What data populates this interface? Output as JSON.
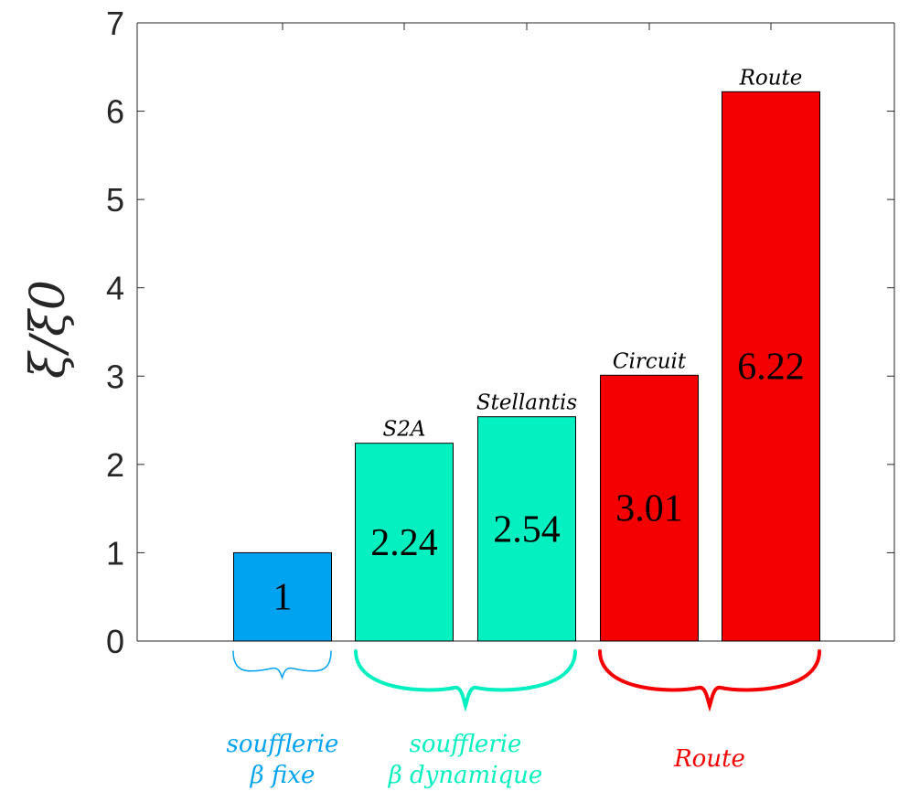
{
  "chart_data": {
    "type": "bar",
    "ylabel": "ξ/ξ0",
    "ylim": [
      0,
      7
    ],
    "yticks": [
      0,
      1,
      2,
      3,
      4,
      5,
      6,
      7
    ],
    "grid": false,
    "bars": [
      {
        "top_label": "",
        "value": 1,
        "value_label": "1",
        "color": "#00a3f0",
        "group": 0
      },
      {
        "top_label": "S2A",
        "value": 2.24,
        "value_label": "2.24",
        "color": "#05f0c0",
        "group": 1
      },
      {
        "top_label": "Stellantis",
        "value": 2.54,
        "value_label": "2.54",
        "color": "#05f0c0",
        "group": 1
      },
      {
        "top_label": "Circuit",
        "value": 3.01,
        "value_label": "3.01",
        "color": "#f40000",
        "group": 2
      },
      {
        "top_label": "Route",
        "value": 6.22,
        "value_label": "6.22",
        "color": "#f40000",
        "group": 2
      }
    ],
    "groups": [
      {
        "label_lines": [
          "soufflerie",
          "β fixe"
        ],
        "color": "#00a3f0"
      },
      {
        "label_lines": [
          "soufflerie",
          "β dynamique"
        ],
        "color": "#05f0c0"
      },
      {
        "label_lines": [
          "Route"
        ],
        "color": "#f40000"
      }
    ]
  }
}
